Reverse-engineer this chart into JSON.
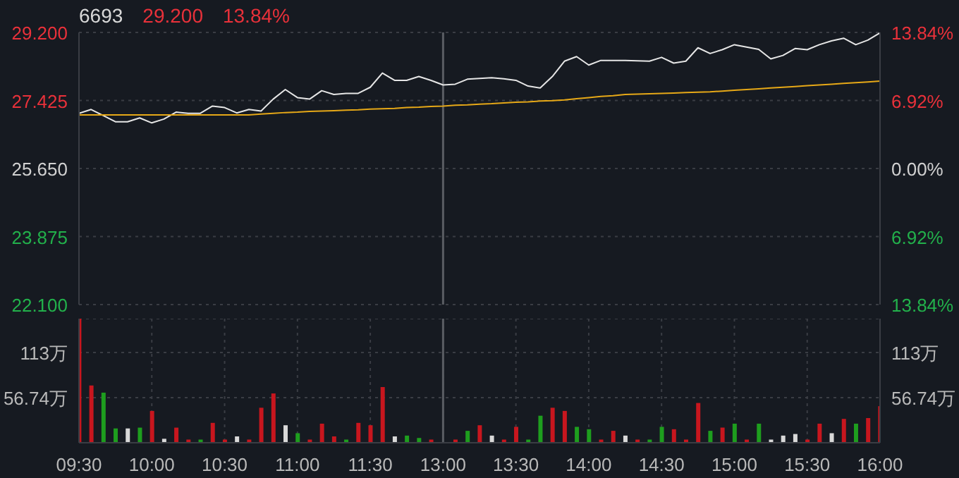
{
  "chart_data": [
    {
      "type": "line",
      "title": "6693",
      "annotations": [
        "29.200",
        "13.84%"
      ],
      "categories": [
        "09:30",
        null,
        null,
        null,
        null,
        null,
        "10:00",
        null,
        null,
        null,
        null,
        null,
        "10:30",
        null,
        null,
        null,
        null,
        null,
        "11:00",
        null,
        null,
        null,
        null,
        null,
        "11:30",
        null,
        null,
        null,
        null,
        null,
        "13:00",
        null,
        null,
        null,
        null,
        null,
        "13:30",
        null,
        null,
        null,
        null,
        null,
        "14:00",
        null,
        null,
        null,
        null,
        null,
        "14:30",
        null,
        null,
        null,
        null,
        null,
        "15:00",
        null,
        null,
        null,
        null,
        null,
        "15:30",
        null,
        null,
        null,
        null,
        null,
        "16:00"
      ],
      "ylim": [
        22.1,
        29.2
      ],
      "yticks": [
        {
          "value": 29.2,
          "label": "29.200"
        },
        27.425,
        {
          "value": 25.65,
          "label": "25.650"
        },
        23.875,
        {
          "value": 22.1,
          "label": "22.100"
        }
      ],
      "y2lim": [
        -13.84,
        13.84
      ],
      "y2ticks": [
        {
          "value": 13.84,
          "label": "13.84%"
        },
        {
          "value": 6.92,
          "label": "6.92%"
        },
        {
          "value": 0,
          "label": "0.00%"
        },
        {
          "value": -6.92,
          "label": "6.92%"
        },
        {
          "value": -13.84,
          "label": "13.84%"
        }
      ],
      "grid": true,
      "tick_labels": "y",
      "ref_lines": [
        {
          "axis": "x",
          "value": "13:00",
          "color": "#5a5d63"
        }
      ],
      "series": [
        {
          "color": "#e6e6e6",
          "values": [
            27.09,
            27.19,
            27.03,
            26.87,
            26.87,
            26.97,
            26.84,
            26.94,
            27.12,
            27.09,
            27.09,
            27.28,
            27.24,
            27.1,
            27.19,
            27.15,
            27.46,
            27.71,
            27.5,
            27.46,
            27.68,
            27.58,
            27.61,
            27.61,
            27.77,
            28.14,
            27.95,
            27.95,
            28.05,
            27.95,
            27.83,
            27.85,
            27.98,
            28.0,
            28.02,
            27.99,
            27.95,
            27.8,
            27.75,
            28.05,
            28.45,
            28.57,
            28.35,
            28.47,
            28.47,
            28.47,
            28.46,
            28.45,
            28.55,
            28.4,
            28.45,
            28.8,
            28.65,
            28.75,
            28.88,
            28.82,
            28.76,
            28.51,
            28.6,
            28.78,
            28.75,
            28.88,
            28.98,
            29.05,
            28.88,
            29.0,
            29.19
          ]
        },
        {
          "color": "#e6a817",
          "values": [
            27.05,
            27.05,
            27.05,
            27.05,
            27.05,
            27.05,
            27.05,
            27.05,
            27.05,
            27.05,
            27.05,
            27.05,
            27.05,
            27.05,
            27.05,
            27.07,
            27.09,
            27.11,
            27.12,
            27.14,
            27.15,
            27.16,
            27.17,
            27.18,
            27.2,
            27.21,
            27.22,
            27.24,
            27.25,
            27.27,
            27.28,
            27.3,
            27.31,
            27.33,
            27.34,
            27.36,
            27.38,
            27.39,
            27.41,
            27.42,
            27.44,
            27.47,
            27.5,
            27.53,
            27.55,
            27.58,
            27.59,
            27.6,
            27.61,
            27.62,
            27.63,
            27.64,
            27.65,
            27.67,
            27.69,
            27.71,
            27.73,
            27.75,
            27.77,
            27.79,
            27.81,
            27.83,
            27.85,
            27.87,
            27.89,
            27.91,
            27.93
          ]
        }
      ]
    },
    {
      "type": "bar",
      "categories": [
        "09:30",
        null,
        null,
        null,
        null,
        null,
        "10:00",
        null,
        null,
        null,
        null,
        null,
        "10:30",
        null,
        null,
        null,
        null,
        null,
        "11:00",
        null,
        null,
        null,
        null,
        null,
        "11:30",
        null,
        null,
        null,
        null,
        null,
        "13:00",
        null,
        null,
        null,
        null,
        null,
        "13:30",
        null,
        null,
        null,
        null,
        null,
        "14:00",
        null,
        null,
        null,
        null,
        null,
        "14:30",
        null,
        null,
        null,
        null,
        null,
        "15:00",
        null,
        null,
        null,
        null,
        null,
        "15:30",
        null,
        null,
        null,
        null,
        null,
        "16:00"
      ],
      "ylim": [
        0,
        156
      ],
      "yticks": [
        {
          "value": 56.74,
          "label": "56.74万"
        },
        {
          "value": 113.48,
          "label": "113万"
        }
      ],
      "y2lim": [
        0,
        156
      ],
      "y2ticks": [
        {
          "value": 56.74,
          "label": "56.74万"
        },
        {
          "value": 113.48,
          "label": "113万"
        }
      ],
      "grid": true,
      "ref_lines": [
        {
          "axis": "x",
          "value": "13:00",
          "color": "#5a5d63"
        }
      ],
      "values": [
        156,
        72,
        63,
        18,
        18,
        19,
        40,
        5,
        19,
        4,
        4,
        25,
        4,
        8,
        4,
        44,
        62,
        22,
        12,
        4,
        24,
        8,
        4,
        25,
        22,
        70,
        8,
        9,
        6,
        4,
        null,
        4,
        15,
        22,
        9,
        4,
        20,
        4,
        34,
        44,
        40,
        20,
        17,
        4,
        15,
        9,
        4,
        4,
        20,
        17,
        4,
        50,
        15,
        19,
        24,
        4,
        24,
        4,
        9,
        11,
        4,
        24,
        12,
        30,
        24,
        31,
        46
      ],
      "colors": [
        "#c8161e",
        "#c8161e",
        "#1e9e1e",
        "#1e9e1e",
        "#d8d8d8",
        "#1e9e1e",
        "#c8161e",
        "#d8d8d8",
        "#c8161e",
        "#c8161e",
        "#1e9e1e",
        "#c8161e",
        "#c8161e",
        "#d8d8d8",
        "#c8161e",
        "#c8161e",
        "#c8161e",
        "#d8d8d8",
        "#1e9e1e",
        "#c8161e",
        "#c8161e",
        "#c8161e",
        "#1e9e1e",
        "#c8161e",
        "#c8161e",
        "#c8161e",
        "#d8d8d8",
        "#1e9e1e",
        "#1e9e1e",
        "#c8161e",
        "#d8d8d8",
        "#c8161e",
        "#1e9e1e",
        "#c8161e",
        "#d8d8d8",
        "#c8161e",
        "#c8161e",
        "#1e9e1e",
        "#1e9e1e",
        "#c8161e",
        "#c8161e",
        "#1e9e1e",
        "#1e9e1e",
        "#c8161e",
        "#c8161e",
        "#d8d8d8",
        "#c8161e",
        "#1e9e1e",
        "#1e9e1e",
        "#c8161e",
        "#c8161e",
        "#c8161e",
        "#1e9e1e",
        "#c8161e",
        "#1e9e1e",
        "#c8161e",
        "#1e9e1e",
        "#d8d8d8",
        "#d8d8d8",
        "#d8d8d8",
        "#c8161e",
        "#c8161e",
        "#d8d8d8",
        "#c8161e",
        "#1e9e1e",
        "#c8161e",
        "#c8161e"
      ]
    }
  ]
}
